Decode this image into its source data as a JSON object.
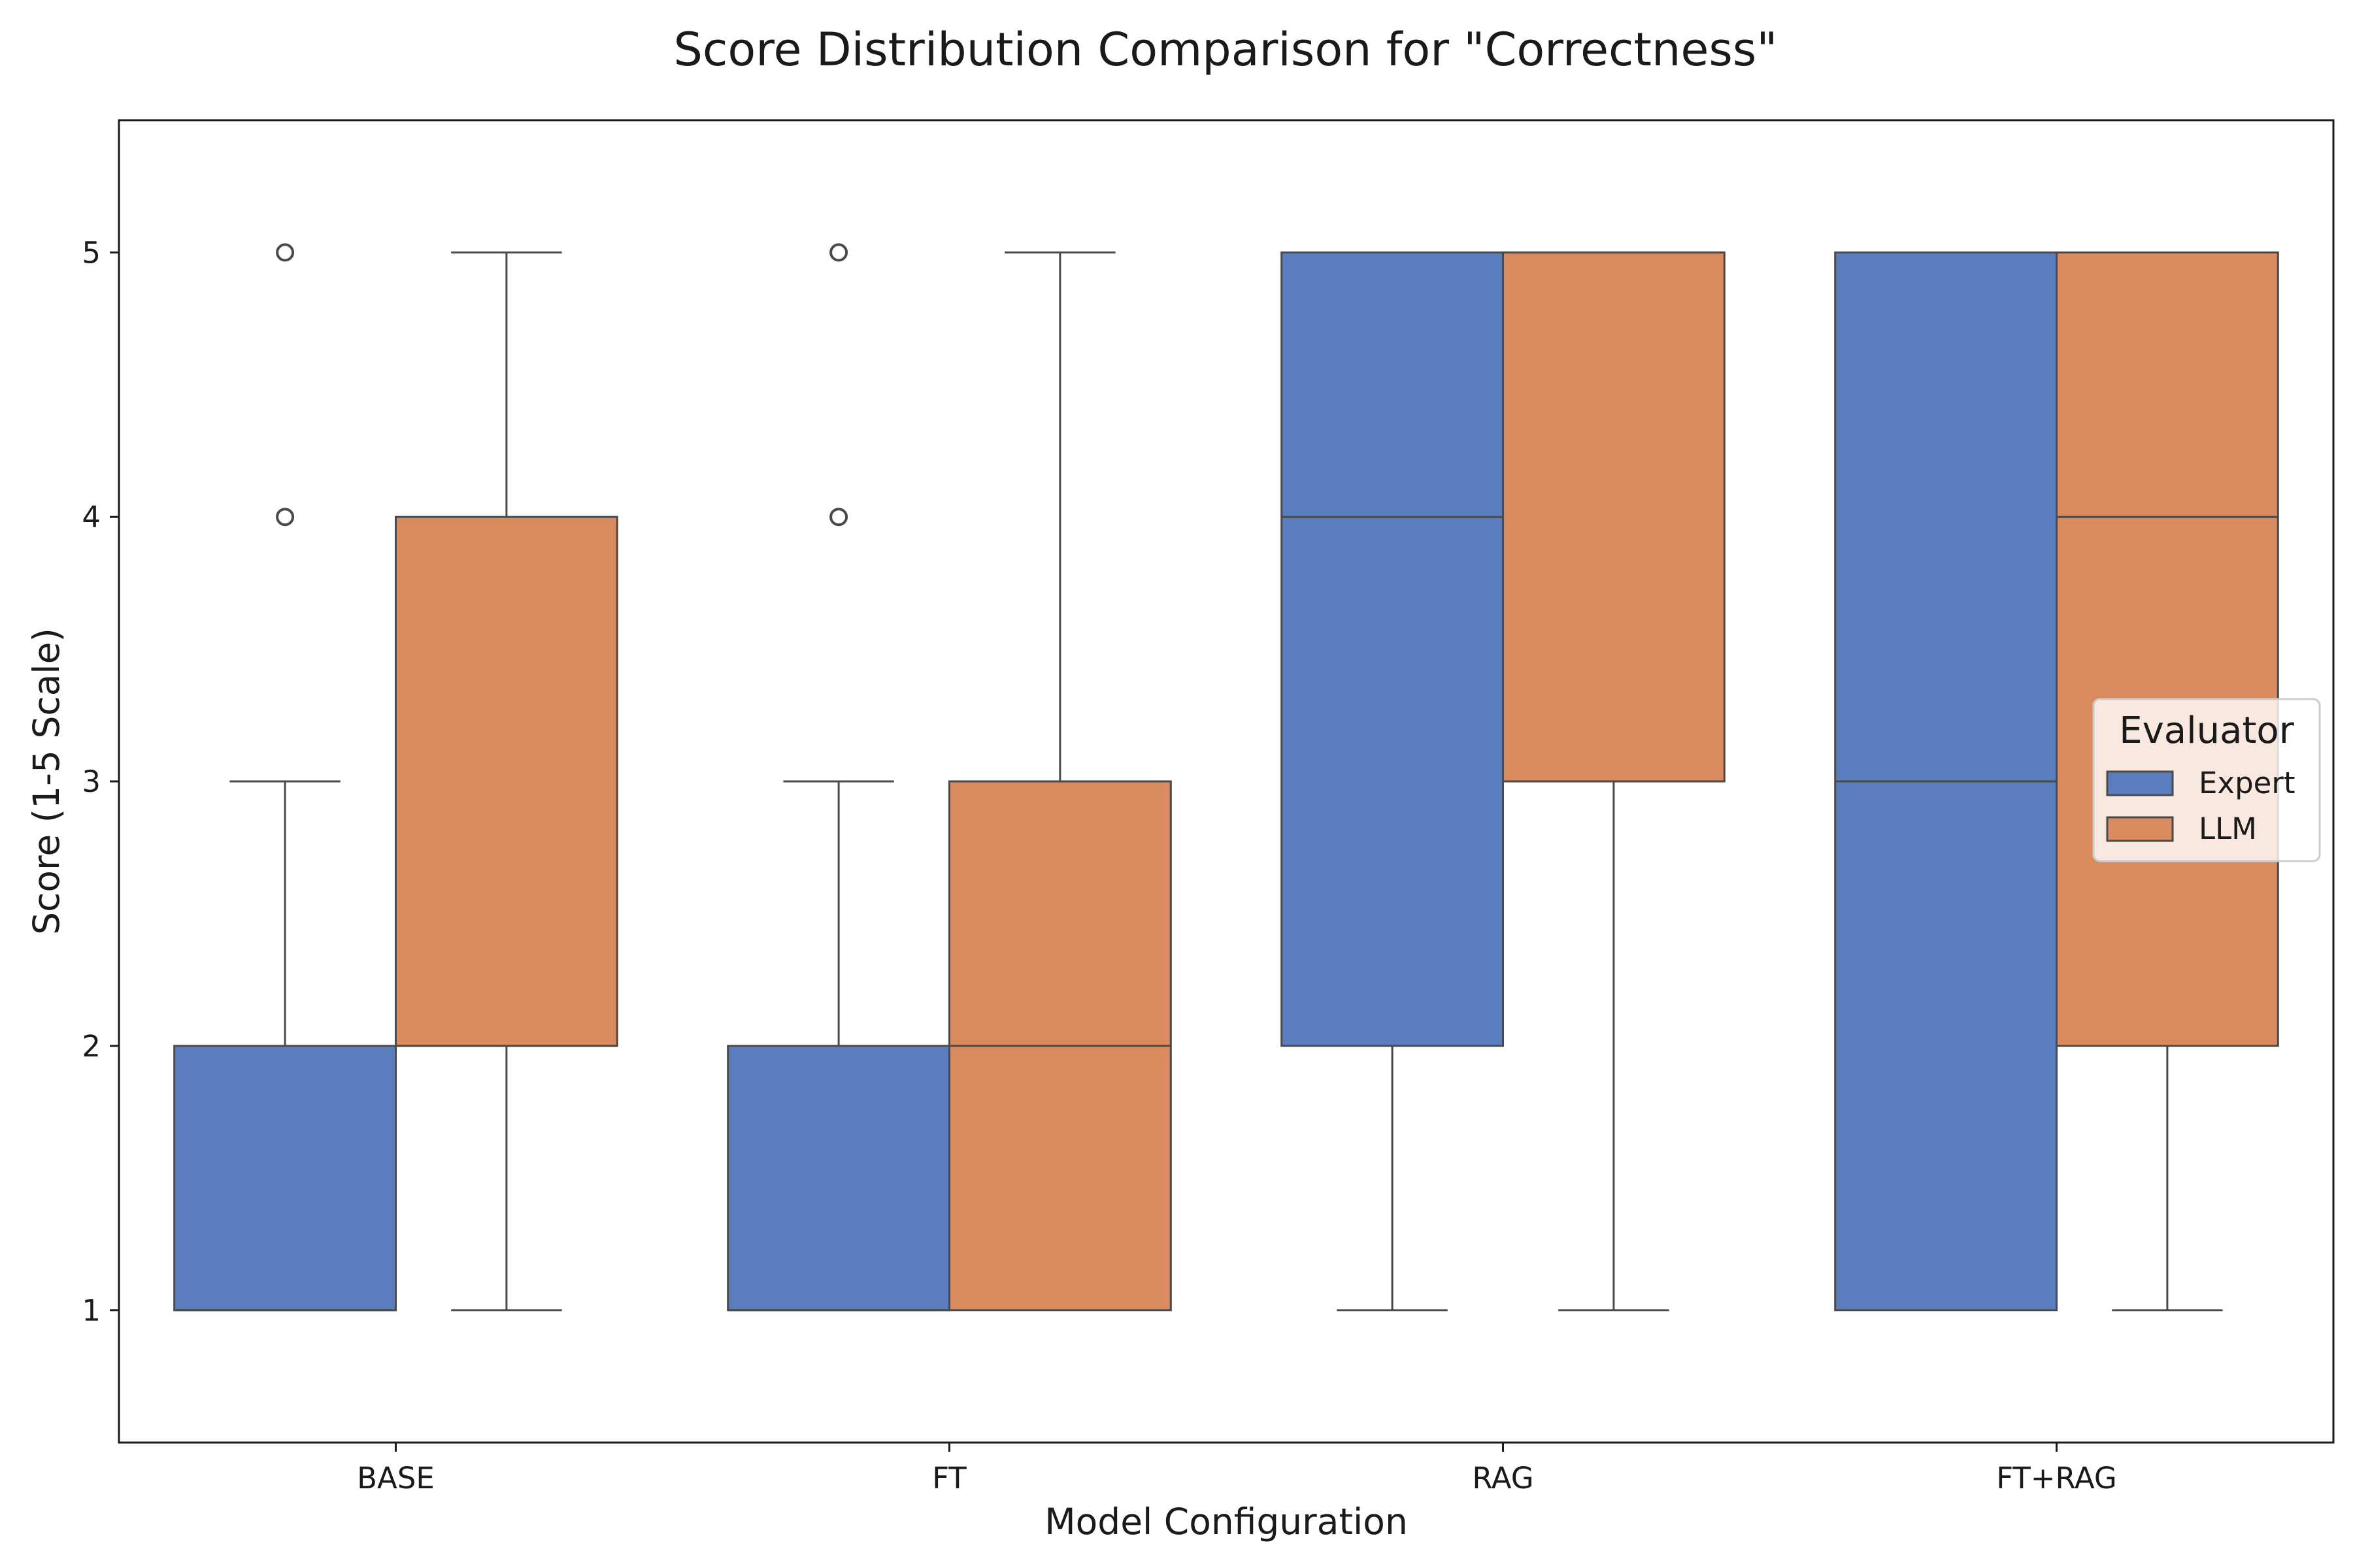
{
  "chart_data": {
    "type": "box",
    "title": "Score Distribution Comparison for \"Correctness\"",
    "xlabel": "Model Configuration",
    "ylabel": "Score (1-5 Scale)",
    "ylim": [
      0.5,
      5.5
    ],
    "yticks": [
      "1",
      "2",
      "3",
      "4",
      "5"
    ],
    "categories": [
      "BASE",
      "FT",
      "RAG",
      "FT+RAG"
    ],
    "legend": {
      "title": "Evaluator",
      "placement": "center-right"
    },
    "series": [
      {
        "name": "Expert",
        "color": "#5a7dbf",
        "boxes": [
          {
            "whisker_low": 1,
            "q1": 1,
            "median": 1,
            "q3": 2,
            "whisker_high": 3,
            "outliers": [
              4,
              5
            ]
          },
          {
            "whisker_low": 1,
            "q1": 1,
            "median": 1,
            "q3": 2,
            "whisker_high": 3,
            "outliers": [
              4,
              5
            ]
          },
          {
            "whisker_low": 1,
            "q1": 2,
            "median": 4,
            "q3": 5,
            "whisker_high": 5,
            "outliers": []
          },
          {
            "whisker_low": 1,
            "q1": 1,
            "median": 3,
            "q3": 5,
            "whisker_high": 5,
            "outliers": []
          }
        ]
      },
      {
        "name": "LLM",
        "color": "#d98a5f",
        "boxes": [
          {
            "whisker_low": 1,
            "q1": 2,
            "median": 2,
            "q3": 4,
            "whisker_high": 5,
            "outliers": []
          },
          {
            "whisker_low": 1,
            "q1": 1,
            "median": 2,
            "q3": 3,
            "whisker_high": 5,
            "outliers": []
          },
          {
            "whisker_low": 1,
            "q1": 3,
            "median": 5,
            "q3": 5,
            "whisker_high": 5,
            "outliers": []
          },
          {
            "whisker_low": 1,
            "q1": 2,
            "median": 4,
            "q3": 5,
            "whisker_high": 5,
            "outliers": []
          }
        ]
      }
    ]
  }
}
